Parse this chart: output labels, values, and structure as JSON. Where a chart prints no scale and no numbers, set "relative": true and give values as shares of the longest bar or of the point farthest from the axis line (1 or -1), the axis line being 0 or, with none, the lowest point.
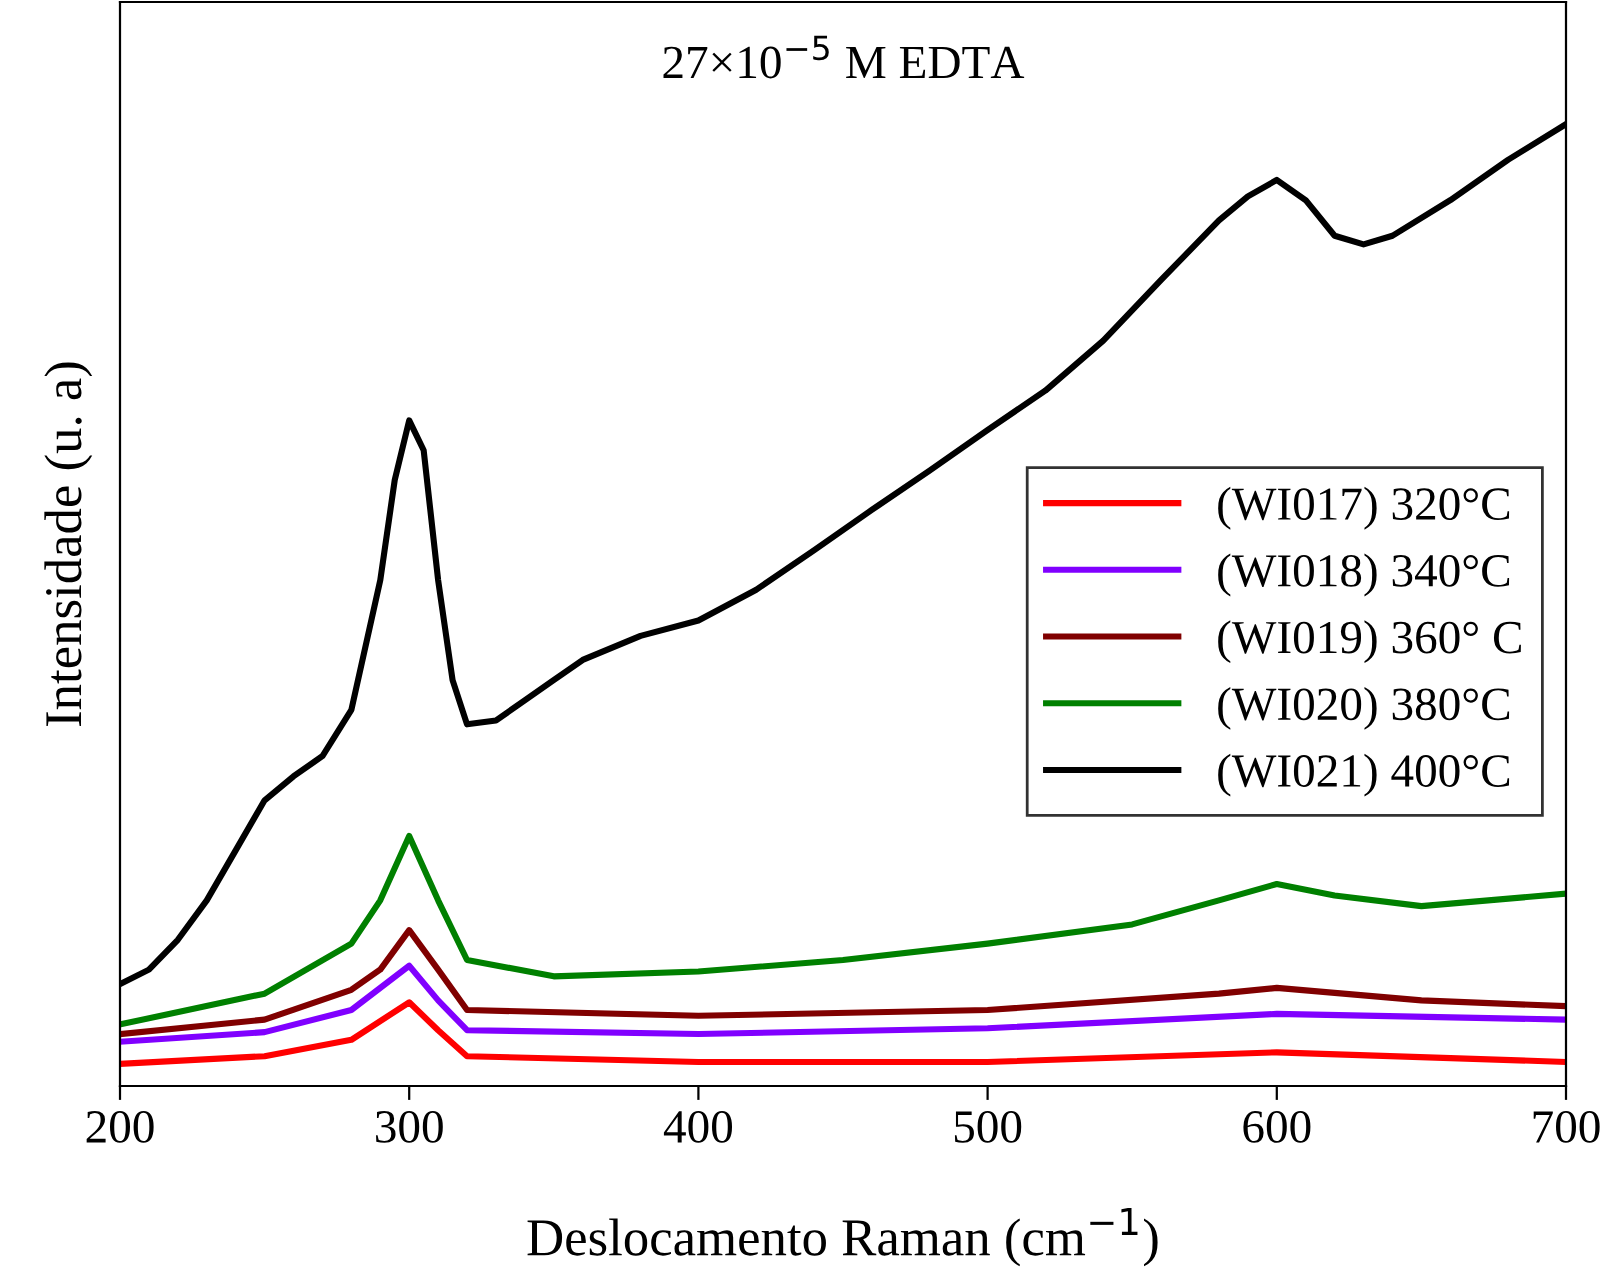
{
  "chart_data": {
    "type": "line",
    "title": "27×10$^{−5}$ M EDTA",
    "xlabel": "Deslocamento Raman (cm$^{−1}$)",
    "ylabel": "Intensidade (u. a)",
    "relative": true,
    "xlim": [
      200,
      700
    ],
    "xticks": [
      200,
      300,
      400,
      500,
      600,
      700
    ],
    "legend": "right",
    "grid": false,
    "marker": "none",
    "line_style": "solid",
    "series": [
      {
        "name": "(WI017) 320°C",
        "color": "#ff0000",
        "x": [
          200,
          250,
          280,
          300,
          310,
          320,
          400,
          500,
          600,
          700
        ],
        "values": [
          0.023,
          0.031,
          0.048,
          0.087,
          0.058,
          0.031,
          0.025,
          0.025,
          0.035,
          0.025
        ]
      },
      {
        "name": "(WI018) 340°C",
        "color": "#8000ff",
        "x": [
          200,
          250,
          280,
          300,
          310,
          320,
          400,
          500,
          600,
          700
        ],
        "values": [
          0.046,
          0.056,
          0.079,
          0.125,
          0.089,
          0.058,
          0.054,
          0.06,
          0.075,
          0.069
        ]
      },
      {
        "name": "(WI019) 360° C",
        "color": "#800000",
        "x": [
          200,
          250,
          280,
          290,
          300,
          310,
          320,
          400,
          500,
          580,
          600,
          650,
          700
        ],
        "values": [
          0.054,
          0.069,
          0.1,
          0.121,
          0.162,
          0.121,
          0.079,
          0.073,
          0.079,
          0.096,
          0.102,
          0.089,
          0.083
        ]
      },
      {
        "name": "(WI020) 380°C",
        "color": "#008000",
        "x": [
          200,
          250,
          280,
          290,
          300,
          310,
          320,
          350,
          400,
          450,
          500,
          550,
          580,
          600,
          620,
          650,
          700
        ],
        "values": [
          0.064,
          0.096,
          0.148,
          0.193,
          0.26,
          0.193,
          0.131,
          0.114,
          0.119,
          0.131,
          0.148,
          0.168,
          0.193,
          0.21,
          0.198,
          0.187,
          0.2
        ]
      },
      {
        "name": "(WI021) 400°C",
        "color": "#000000",
        "x": [
          200,
          210,
          220,
          230,
          240,
          250,
          260,
          270,
          280,
          290,
          295,
          300,
          305,
          310,
          315,
          320,
          330,
          340,
          350,
          360,
          380,
          400,
          420,
          440,
          460,
          480,
          500,
          520,
          540,
          560,
          580,
          590,
          600,
          610,
          620,
          630,
          640,
          660,
          680,
          700
        ],
        "values": [
          0.106,
          0.121,
          0.152,
          0.193,
          0.245,
          0.297,
          0.322,
          0.343,
          0.391,
          0.526,
          0.63,
          0.692,
          0.661,
          0.526,
          0.422,
          0.376,
          0.38,
          0.401,
          0.422,
          0.443,
          0.468,
          0.484,
          0.516,
          0.557,
          0.599,
          0.64,
          0.682,
          0.723,
          0.775,
          0.838,
          0.9,
          0.925,
          0.942,
          0.921,
          0.884,
          0.875,
          0.884,
          0.921,
          0.963,
          1.0
        ]
      }
    ]
  }
}
